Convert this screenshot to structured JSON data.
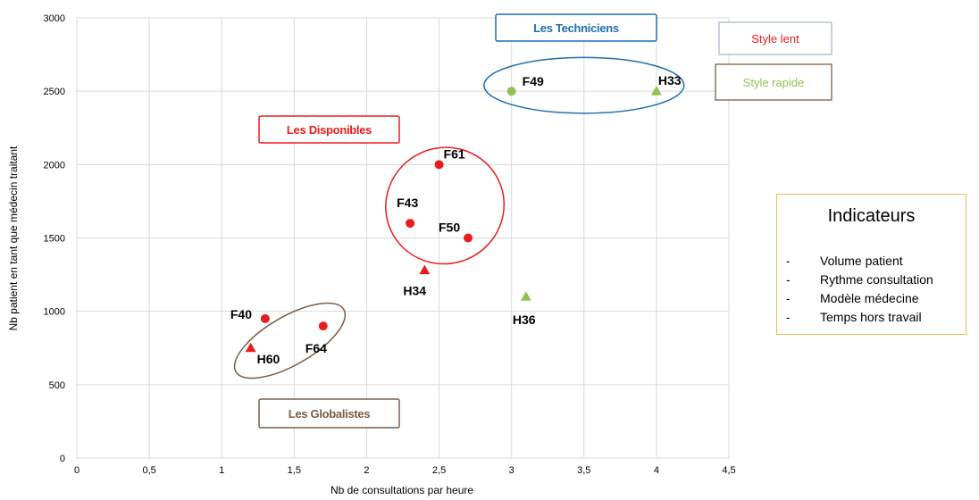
{
  "chart_data": {
    "type": "scatter",
    "title": "",
    "xlabel": "Nb de consultations par heure",
    "ylabel": "Nb patient en tant que médecin traitant",
    "xlim": [
      0,
      4.5
    ],
    "ylim": [
      0,
      3000
    ],
    "xticks": [
      0,
      0.5,
      1,
      1.5,
      2,
      2.5,
      3,
      3.5,
      4,
      4.5
    ],
    "xtick_labels": [
      "0",
      "0,5",
      "1",
      "1,5",
      "2",
      "2,5",
      "3",
      "3,5",
      "4",
      "4,5"
    ],
    "yticks": [
      0,
      500,
      1000,
      1500,
      2000,
      2500,
      3000
    ],
    "ytick_labels": [
      "0",
      "500",
      "1000",
      "1500",
      "2000",
      "2500",
      "3000"
    ],
    "grid": true,
    "points": [
      {
        "label": "F49",
        "x": 3.0,
        "y": 2500,
        "marker": "circle",
        "style": "rapide"
      },
      {
        "label": "H33",
        "x": 4.0,
        "y": 2500,
        "marker": "triangle",
        "style": "rapide"
      },
      {
        "label": "F61",
        "x": 2.5,
        "y": 2000,
        "marker": "circle",
        "style": "lent"
      },
      {
        "label": "F43",
        "x": 2.3,
        "y": 1600,
        "marker": "circle",
        "style": "lent"
      },
      {
        "label": "F50",
        "x": 2.7,
        "y": 1500,
        "marker": "circle",
        "style": "lent"
      },
      {
        "label": "H34",
        "x": 2.4,
        "y": 1280,
        "marker": "triangle",
        "style": "lent"
      },
      {
        "label": "H36",
        "x": 3.1,
        "y": 1100,
        "marker": "triangle",
        "style": "rapide"
      },
      {
        "label": "F40",
        "x": 1.3,
        "y": 950,
        "marker": "circle",
        "style": "lent"
      },
      {
        "label": "F64",
        "x": 1.7,
        "y": 900,
        "marker": "circle",
        "style": "lent"
      },
      {
        "label": "H60",
        "x": 1.2,
        "y": 750,
        "marker": "triangle",
        "style": "lent"
      }
    ],
    "groups": [
      {
        "name": "Les Techniciens",
        "color": "#1f6fb2",
        "cx": 3.5,
        "cy": 2540,
        "rx": 0.69,
        "ry": 190,
        "rotate": 0
      },
      {
        "name": "Les Disponibles",
        "color": "#e81c1c",
        "cx": 2.54,
        "cy": 1720,
        "rx": 0.41,
        "ry": 395,
        "rotate": -25
      },
      {
        "name": "Les Globalistes",
        "color": "#7a5d45",
        "cx": 1.47,
        "cy": 800,
        "rx": 0.43,
        "ry": 165,
        "rotate": -30
      }
    ],
    "legend": [
      {
        "label": "Style lent",
        "color": "#e81c1c"
      },
      {
        "label": "Style rapide",
        "color": "#92c254"
      }
    ],
    "colors": {
      "lent": "#e81c1c",
      "rapide": "#92c254",
      "grid": "#d9d9d9"
    }
  },
  "indicators": {
    "title": "Indicateurs",
    "dash": "-",
    "items": [
      "Volume patient",
      "Rythme consultation",
      "Modèle médecine",
      "Temps hors travail"
    ]
  }
}
